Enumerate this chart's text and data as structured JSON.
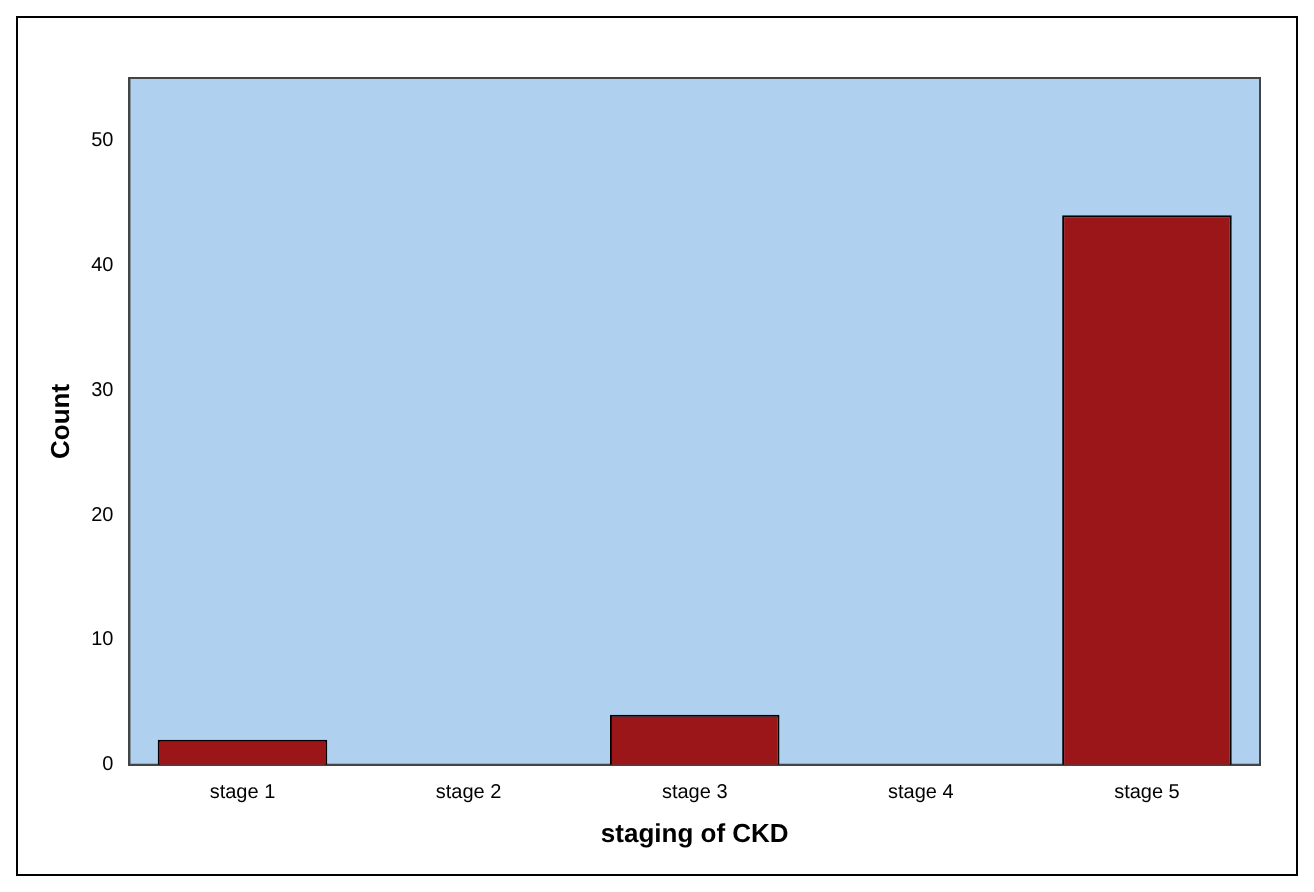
{
  "chart_data": {
    "type": "bar",
    "xlabel": "staging of CKD",
    "ylabel": "Count",
    "categories": [
      "stage 1",
      "stage 2",
      "stage 3",
      "stage 4",
      "stage 5"
    ],
    "values": [
      2,
      0,
      4,
      0,
      44
    ],
    "color": "#9b1618",
    "ylim": [
      0,
      55
    ],
    "yticks": [
      0,
      10,
      20,
      30,
      40,
      50
    ],
    "grid": false,
    "legend": false
  }
}
